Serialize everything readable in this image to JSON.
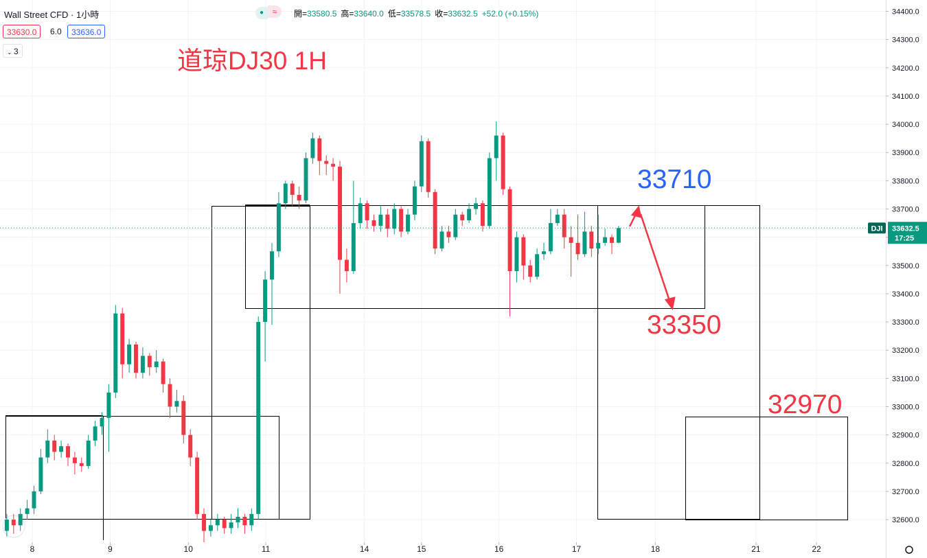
{
  "chart_data": {
    "type": "candlestick",
    "symbol": "Wall Street CFD · 1小時",
    "bid": "33630.0",
    "spread": "6.0",
    "ask": "33636.0",
    "indicator_count": "3",
    "ohlc_legend": [
      {
        "label": "開=",
        "value": "33580.5"
      },
      {
        "label": "高=",
        "value": "33640.0"
      },
      {
        "label": "低=",
        "value": "33578.5"
      },
      {
        "label": "收=",
        "value": "33632.5"
      }
    ],
    "change": "+52.0 (+0.15%)",
    "title": "道琼DJ30 1H",
    "annotations": [
      {
        "text": "33710",
        "color": "#2962ff"
      },
      {
        "text": "33350",
        "color": "#f23645"
      },
      {
        "text": "32970",
        "color": "#f23645"
      }
    ],
    "price_tag": {
      "ticker": "DJI",
      "price": "33632.5",
      "countdown": "17:25"
    },
    "up_color": "#089981",
    "down_color": "#f23645",
    "ylim": [
      32520,
      34440
    ],
    "yticks": [
      {
        "value": 32600,
        "label": "32600.0"
      },
      {
        "value": 32700,
        "label": "32700.0"
      },
      {
        "value": 32800,
        "label": "32800.0"
      },
      {
        "value": 32900,
        "label": "32900.0"
      },
      {
        "value": 33000,
        "label": "33000.0"
      },
      {
        "value": 33100,
        "label": "33100.0"
      },
      {
        "value": 33200,
        "label": "33200.0"
      },
      {
        "value": 33300,
        "label": "33300.0"
      },
      {
        "value": 33400,
        "label": "33400.0"
      },
      {
        "value": 33500,
        "label": "33500.0"
      },
      {
        "value": 33600,
        "label": "33600.0"
      },
      {
        "value": 33700,
        "label": "33700.0"
      },
      {
        "value": 33800,
        "label": "33800.0"
      },
      {
        "value": 33900,
        "label": "33900.0"
      },
      {
        "value": 34000,
        "label": "34000.0"
      },
      {
        "value": 34100,
        "label": "34100.0"
      },
      {
        "value": 34200,
        "label": "34200.0"
      },
      {
        "value": 34300,
        "label": "34300.0"
      },
      {
        "value": 34400,
        "label": "34400.0"
      }
    ],
    "xlim": [
      -1,
      129.3
    ],
    "xticks": [
      {
        "value": 3.75,
        "label": "8"
      },
      {
        "value": 15.2,
        "label": "9"
      },
      {
        "value": 26.7,
        "label": "10"
      },
      {
        "value": 38.1,
        "label": "11"
      },
      {
        "value": 52.6,
        "label": "14"
      },
      {
        "value": 61,
        "label": "15"
      },
      {
        "value": 72.4,
        "label": "16"
      },
      {
        "value": 83.8,
        "label": "17"
      },
      {
        "value": 95.4,
        "label": "18"
      },
      {
        "value": 110.2,
        "label": "21"
      },
      {
        "value": 119.1,
        "label": "22"
      }
    ],
    "grid": true,
    "open": [
      32560,
      32600,
      32580,
      32620,
      32640,
      32700,
      32820,
      32880,
      32840,
      32860,
      32820,
      32800,
      32790,
      32880,
      32930,
      32960,
      33050,
      33330,
      33150,
      33220,
      33120,
      33180,
      33140,
      33160,
      33080,
      33000,
      33020,
      32900,
      32820,
      32620,
      32560,
      32580,
      32600,
      32570,
      32590,
      32610,
      32580,
      32620,
      33300,
      33450,
      33550,
      33720,
      33790,
      33750,
      33730,
      33880,
      33950,
      33870,
      33860,
      33850,
      33520,
      33480,
      33650,
      33720,
      33660,
      33640,
      33680,
      33630,
      33700,
      33620,
      33680,
      33780,
      33940,
      33760,
      33560,
      33620,
      33600,
      33680,
      33660,
      33700,
      33720,
      33640,
      33880,
      33960,
      33770,
      33480,
      33600,
      33500,
      33460,
      33540,
      33550,
      33650,
      33680,
      33600,
      33580,
      33540,
      33620,
      33560,
      33580,
      33600,
      33580.5
    ],
    "high": [
      32620,
      32620,
      32640,
      32670,
      32720,
      32850,
      32920,
      32900,
      32880,
      32870,
      32840,
      32820,
      32900,
      32950,
      32980,
      33080,
      33360,
      33350,
      33240,
      33230,
      33210,
      33190,
      33200,
      33170,
      33100,
      33060,
      33040,
      32920,
      32840,
      32640,
      32600,
      32620,
      32610,
      32620,
      32640,
      32620,
      32640,
      33320,
      33480,
      33580,
      33760,
      33800,
      33800,
      33780,
      33900,
      33970,
      33960,
      33890,
      33880,
      33870,
      33560,
      33800,
      33740,
      33730,
      33680,
      33710,
      33700,
      33720,
      33710,
      33700,
      33800,
      33960,
      33950,
      33770,
      33640,
      33640,
      33700,
      33690,
      33720,
      33740,
      33730,
      33900,
      34010,
      33970,
      33780,
      33620,
      33610,
      33520,
      33560,
      33580,
      33700,
      33700,
      33700,
      33640,
      33680,
      33690,
      33640,
      33680,
      33630,
      33610,
      33640
    ],
    "low": [
      32540,
      32550,
      32560,
      32600,
      32620,
      32690,
      32800,
      32810,
      32820,
      32790,
      32760,
      32770,
      32780,
      32860,
      32900,
      32840,
      33030,
      33100,
      33120,
      33100,
      33100,
      33110,
      33120,
      33050,
      32960,
      32980,
      32870,
      32790,
      32600,
      32520,
      32540,
      32560,
      32550,
      32550,
      32570,
      32550,
      32560,
      32600,
      33160,
      33290,
      33530,
      33700,
      33710,
      33700,
      33720,
      33860,
      33820,
      33820,
      33800,
      33400,
      33440,
      33470,
      33630,
      33630,
      33620,
      33620,
      33600,
      33610,
      33600,
      33610,
      33660,
      33760,
      33740,
      33540,
      33550,
      33580,
      33590,
      33640,
      33650,
      33680,
      33620,
      33630,
      33800,
      33750,
      33320,
      33440,
      33450,
      33440,
      33450,
      33520,
      33540,
      33640,
      33560,
      33460,
      33520,
      33530,
      33530,
      33540,
      33570,
      33540,
      33578.5
    ],
    "close": [
      32600,
      32580,
      32620,
      32640,
      32700,
      32820,
      32880,
      32840,
      32860,
      32820,
      32800,
      32790,
      32880,
      32930,
      32960,
      33050,
      33330,
      33150,
      33220,
      33120,
      33180,
      33140,
      33160,
      33080,
      33000,
      33020,
      32900,
      32820,
      32620,
      32560,
      32580,
      32600,
      32570,
      32590,
      32610,
      32580,
      32620,
      33300,
      33450,
      33550,
      33720,
      33790,
      33750,
      33730,
      33880,
      33950,
      33870,
      33860,
      33850,
      33520,
      33480,
      33650,
      33720,
      33660,
      33640,
      33680,
      33630,
      33700,
      33620,
      33680,
      33780,
      33940,
      33760,
      33560,
      33620,
      33600,
      33680,
      33660,
      33700,
      33720,
      33640,
      33880,
      33960,
      33770,
      33480,
      33600,
      33500,
      33460,
      33540,
      33550,
      33650,
      33680,
      33600,
      33580,
      33540,
      33620,
      33560,
      33580,
      33600,
      33580,
      33632.5
    ]
  }
}
